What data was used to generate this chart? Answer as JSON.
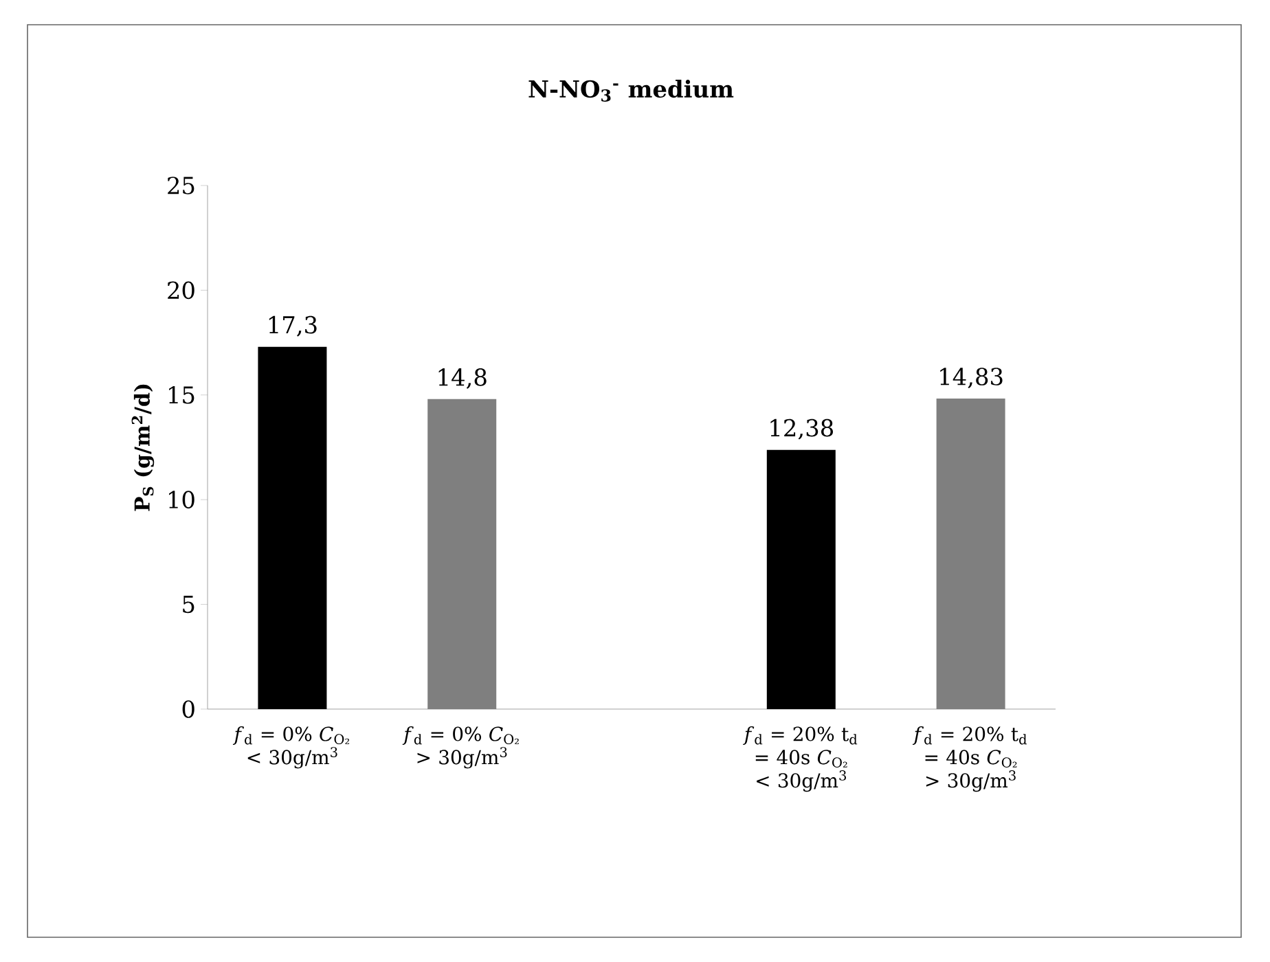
{
  "chart_data": {
    "type": "bar",
    "title": "N-NO$_{3}$$^{-}$ medium",
    "ylabel": "P$_{S}$ (g/m$^{2}$/d)",
    "categories": [
      "*f*$_{d}$ = 0% *C*$_{O₂}$ < 30g/m$^{3}$",
      "*f*$_{d}$ = 0% *C*$_{O₂}$ > 30g/m$^{3}$",
      null,
      "*f*$_{d}$ = 20% t$_{d}$ = 40s *C*$_{O₂}$ < 30g/m$^{3}$",
      "*f*$_{d}$ = 20% t$_{d}$ = 40s *C*$_{O₂}$ > 30g/m$^{3}$"
    ],
    "values": [
      17.3,
      14.8,
      null,
      12.38,
      14.83
    ],
    "value_labels": [
      "17,3",
      "14,8",
      null,
      "12,38",
      "14,83"
    ],
    "colors": [
      "#000000",
      "#7f7f7f",
      null,
      "#000000",
      "#7f7f7f"
    ],
    "ylim": [
      0,
      25
    ],
    "yticks": [
      0,
      5,
      10,
      15,
      20,
      25
    ],
    "grid": false
  }
}
